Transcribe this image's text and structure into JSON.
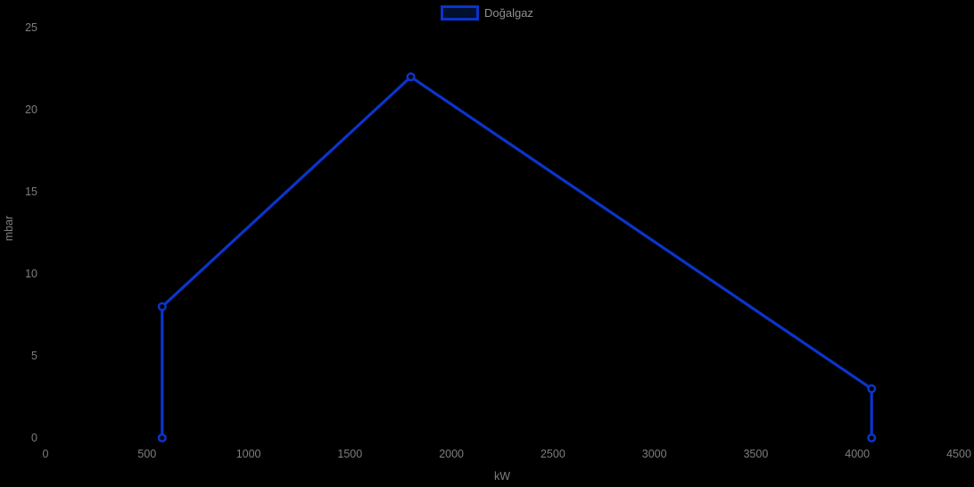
{
  "chart_data": {
    "type": "line",
    "title": "",
    "xlabel": "kW",
    "ylabel": "mbar",
    "xlim": [
      0,
      4500
    ],
    "ylim": [
      0,
      25
    ],
    "x_ticks": [
      0,
      500,
      1000,
      1500,
      2000,
      2500,
      3000,
      3500,
      4000,
      4500
    ],
    "y_ticks": [
      0,
      5,
      10,
      15,
      20,
      25
    ],
    "grid": false,
    "background_color": "#000000",
    "tick_label_color": "#7e7e7e",
    "legend": {
      "position": "top-center",
      "items": [
        {
          "label": "Doğalgaz",
          "color": "#0b34cc"
        }
      ]
    },
    "series": [
      {
        "name": "Doğalgaz",
        "color": "#0b34cc",
        "line_width": 3.2,
        "marker": "open-circle",
        "points": [
          [
            575,
            0
          ],
          [
            575,
            8
          ],
          [
            1800,
            22
          ],
          [
            4070,
            3
          ],
          [
            4070,
            0
          ]
        ]
      }
    ]
  }
}
